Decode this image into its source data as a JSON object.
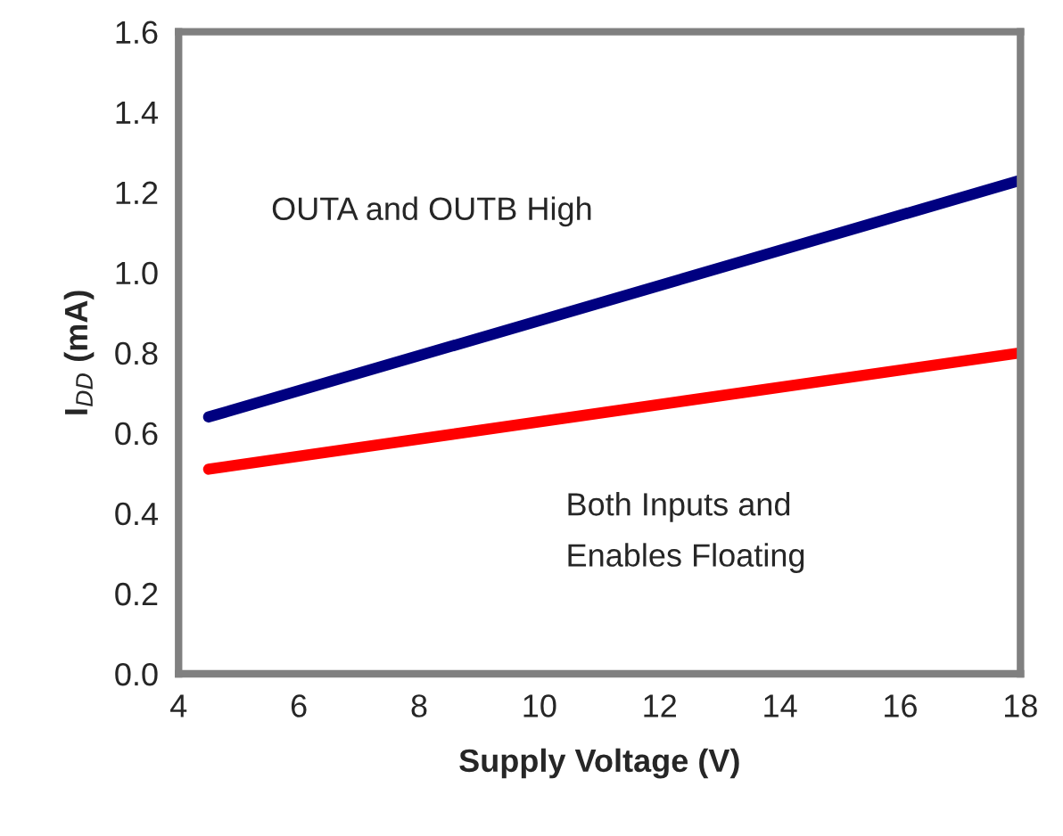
{
  "chart_data": {
    "type": "line",
    "xlabel": "Supply Voltage (V)",
    "ylabel": "I$_{DD}$ (mA)",
    "series": [
      {
        "name": "OUTA and OUTB High",
        "color": "#000080",
        "values": [
          0.64,
          1.23
        ]
      },
      {
        "name": "Both Inputs and\nEnables Floating",
        "color": "#ff0000",
        "values": [
          0.51,
          0.8
        ]
      }
    ],
    "x": [
      4.5,
      18
    ],
    "xlim": [
      4,
      18
    ],
    "xticks": [
      4,
      6,
      8,
      10,
      12,
      14,
      16,
      18
    ],
    "ylim": [
      0,
      1.6
    ],
    "yticks": [
      {
        "value": 0,
        "label": "0.0"
      },
      {
        "value": 0.2,
        "label": "0.2"
      },
      {
        "value": 0.4,
        "label": "0.4"
      },
      {
        "value": 0.6,
        "label": "0.6"
      },
      {
        "value": 0.8,
        "label": "0.8"
      },
      {
        "value": 1.0,
        "label": "1.0"
      },
      {
        "value": 1.2,
        "label": "1.2"
      },
      {
        "value": 1.4,
        "label": "1.4"
      },
      {
        "value": 1.6,
        "label": "1.6"
      }
    ],
    "grid": false,
    "legend": false
  }
}
